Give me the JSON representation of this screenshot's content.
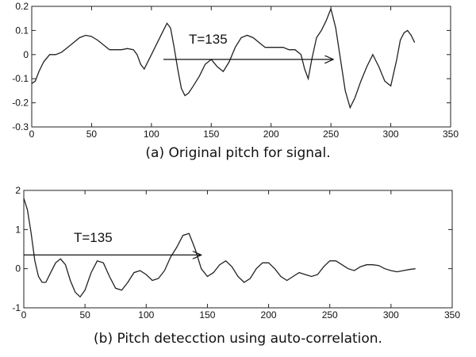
{
  "chart_data": [
    {
      "type": "line",
      "caption": "(a) Original pitch for signal.",
      "annotation": "T=135",
      "arrow": {
        "from": [
          110,
          -0.02
        ],
        "to": [
          252,
          -0.02
        ]
      },
      "xlim": [
        0,
        350
      ],
      "ylim": [
        -0.3,
        0.2
      ],
      "xticks": [
        0,
        50,
        100,
        150,
        200,
        250,
        300,
        350
      ],
      "yticks": [
        -0.3,
        -0.2,
        -0.1,
        0,
        0.1,
        0.2
      ],
      "ytick_labels": [
        "-0.3",
        "-0.2",
        "-0.1",
        "0",
        "0.1",
        "0.2"
      ],
      "grid": false,
      "series": [
        {
          "x": [
            0,
            3,
            6,
            10,
            15,
            20,
            25,
            30,
            35,
            40,
            45,
            50,
            55,
            60,
            65,
            70,
            75,
            80,
            85,
            88,
            91,
            94,
            97,
            100,
            105,
            110,
            113,
            116,
            119,
            122,
            125,
            128,
            131,
            135,
            140,
            145,
            150,
            155,
            160,
            165,
            170,
            175,
            180,
            185,
            190,
            195,
            200,
            205,
            210,
            215,
            220,
            225,
            228,
            231,
            234,
            238,
            242,
            246,
            250,
            254,
            258,
            262,
            266,
            270,
            275,
            280,
            285,
            290,
            295,
            300,
            305,
            308,
            311,
            314,
            317,
            320
          ],
          "y": [
            -0.12,
            -0.11,
            -0.07,
            -0.03,
            0.0,
            0.0,
            0.01,
            0.03,
            0.05,
            0.07,
            0.08,
            0.075,
            0.06,
            0.04,
            0.02,
            0.02,
            0.02,
            0.025,
            0.02,
            0.0,
            -0.04,
            -0.06,
            -0.03,
            0.0,
            0.05,
            0.1,
            0.13,
            0.11,
            0.03,
            -0.06,
            -0.14,
            -0.17,
            -0.16,
            -0.13,
            -0.09,
            -0.04,
            -0.02,
            -0.05,
            -0.07,
            -0.03,
            0.03,
            0.07,
            0.08,
            0.07,
            0.05,
            0.03,
            0.03,
            0.03,
            0.03,
            0.02,
            0.02,
            0.0,
            -0.06,
            -0.1,
            -0.02,
            0.07,
            0.1,
            0.14,
            0.19,
            0.11,
            -0.02,
            -0.15,
            -0.22,
            -0.18,
            -0.11,
            -0.05,
            0.0,
            -0.05,
            -0.11,
            -0.13,
            -0.02,
            0.06,
            0.09,
            0.1,
            0.08,
            0.05
          ]
        }
      ]
    },
    {
      "type": "line",
      "caption": "(b) Pitch detecction using auto-correlation.",
      "annotation": "T=135",
      "arrow": {
        "from": [
          0,
          0.35
        ],
        "to": [
          145,
          0.35
        ]
      },
      "xlim": [
        0,
        350
      ],
      "ylim": [
        -1,
        2
      ],
      "xticks": [
        0,
        50,
        100,
        150,
        200,
        250,
        300,
        350
      ],
      "yticks": [
        -1,
        0,
        1,
        2
      ],
      "ytick_labels": [
        "-1",
        "0",
        "1",
        "2"
      ],
      "grid": false,
      "series": [
        {
          "x": [
            0,
            3,
            6,
            9,
            12,
            15,
            18,
            22,
            26,
            30,
            34,
            38,
            42,
            46,
            50,
            55,
            60,
            65,
            70,
            75,
            80,
            85,
            90,
            95,
            100,
            105,
            110,
            115,
            120,
            125,
            130,
            135,
            140,
            145,
            150,
            155,
            160,
            165,
            170,
            175,
            180,
            185,
            190,
            195,
            200,
            205,
            210,
            215,
            220,
            225,
            230,
            235,
            240,
            245,
            250,
            255,
            260,
            265,
            270,
            275,
            280,
            285,
            290,
            295,
            300,
            305,
            310,
            315,
            320
          ],
          "y": [
            1.8,
            1.5,
            0.9,
            0.2,
            -0.2,
            -0.35,
            -0.35,
            -0.1,
            0.15,
            0.25,
            0.1,
            -0.3,
            -0.6,
            -0.72,
            -0.55,
            -0.1,
            0.2,
            0.15,
            -0.2,
            -0.5,
            -0.55,
            -0.35,
            -0.1,
            -0.05,
            -0.15,
            -0.3,
            -0.25,
            -0.05,
            0.3,
            0.55,
            0.85,
            0.9,
            0.5,
            0.0,
            -0.2,
            -0.1,
            0.1,
            0.2,
            0.05,
            -0.2,
            -0.35,
            -0.25,
            0.0,
            0.15,
            0.15,
            0.0,
            -0.2,
            -0.3,
            -0.2,
            -0.1,
            -0.15,
            -0.2,
            -0.15,
            0.05,
            0.2,
            0.2,
            0.1,
            0.0,
            -0.05,
            0.05,
            0.1,
            0.1,
            0.08,
            0.0,
            -0.05,
            -0.08,
            -0.05,
            -0.02,
            0.0
          ]
        }
      ]
    }
  ]
}
